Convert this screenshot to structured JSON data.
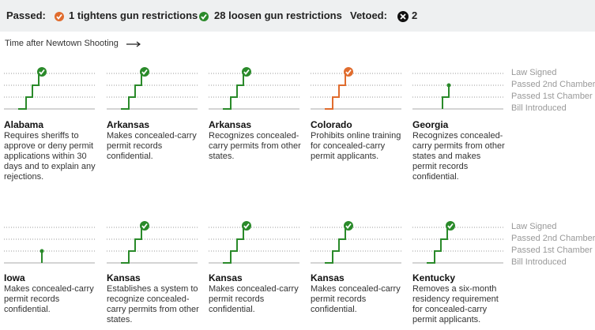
{
  "header": {
    "passed_label": "Passed:",
    "legend": [
      {
        "count": 1,
        "label": "tightens gun restrictions",
        "color": "#e06c2e"
      },
      {
        "count": 28,
        "label": "loosen gun restrictions",
        "color": "#2a8a2a"
      }
    ],
    "vetoed_label": "Vetoed:",
    "vetoed_count": 2
  },
  "time_label": "Time after Newtown Shooting",
  "stages": [
    "Bill Introduced",
    "Passed 1st Chamber",
    "Passed 2nd Chamber",
    "Law Signed"
  ],
  "bills": [
    {
      "state": "Alabama",
      "description": "Requires sheriffs to approve or deny permit applications within 30 days and to explain any rejections.",
      "stage": 3,
      "color": "#2a8a2a"
    },
    {
      "state": "Arkansas",
      "description": "Makes concealed-carry permit records confidential.",
      "stage": 3,
      "color": "#2a8a2a"
    },
    {
      "state": "Arkansas",
      "description": "Recognizes concealed-carry permits from other states.",
      "stage": 3,
      "color": "#2a8a2a"
    },
    {
      "state": "Colorado",
      "description": "Prohibits online training for concealed-carry permit applicants.",
      "stage": 3,
      "color": "#e06c2e"
    },
    {
      "state": "Georgia",
      "description": "Recognizes concealed-carry permits from other states and makes permit records confidential.",
      "stage": 2,
      "color": "#2a8a2a"
    },
    {
      "state": "Iowa",
      "description": "Makes concealed-carry permit records confidential.",
      "stage": 1,
      "color": "#2a8a2a"
    },
    {
      "state": "Kansas",
      "description": "Establishes a system to recognize concealed-carry permits from other states.",
      "stage": 3,
      "color": "#2a8a2a"
    },
    {
      "state": "Kansas",
      "description": "Makes concealed-carry permit records confidential.",
      "stage": 3,
      "color": "#2a8a2a"
    },
    {
      "state": "Kansas",
      "description": "Makes concealed-carry permit records confidential.",
      "stage": 3,
      "color": "#2a8a2a"
    },
    {
      "state": "Kentucky",
      "description": "Removes a six-month residency requirement for concealed-carry permit applicants.",
      "stage": 3,
      "color": "#2a8a2a"
    }
  ]
}
